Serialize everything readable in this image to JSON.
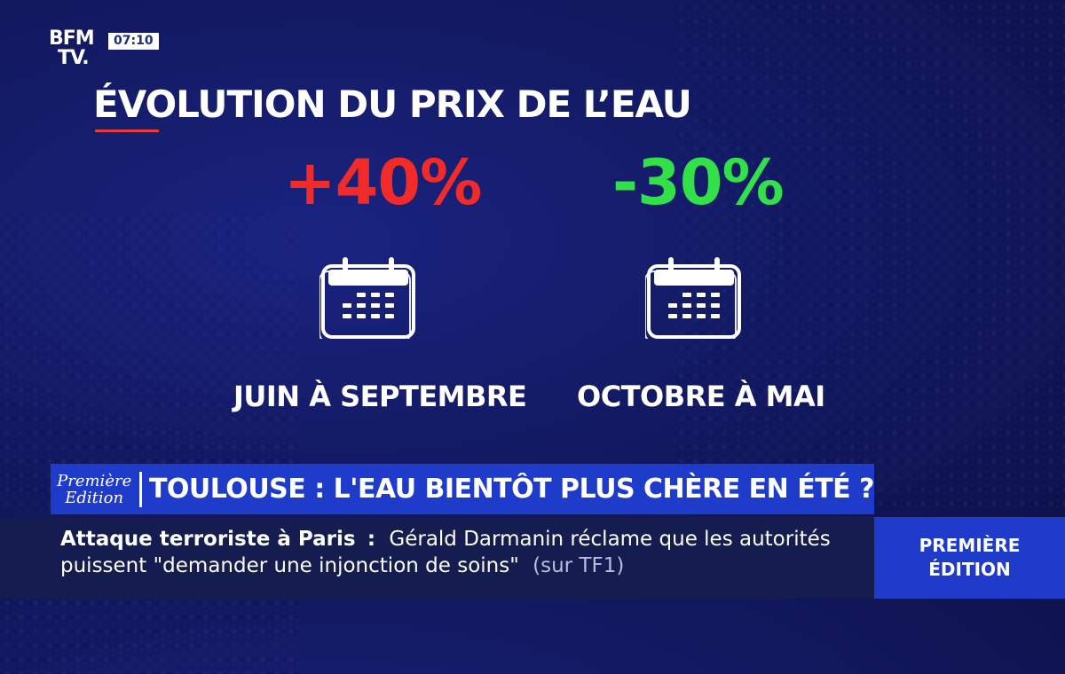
{
  "channel": {
    "logo_line1": "BFM",
    "logo_line2": "TV.",
    "clock": "07:10"
  },
  "infographic": {
    "title": "ÉVOLUTION DU PRIX DE L’EAU",
    "items": [
      {
        "change": "+40%",
        "period": "JUIN À SEPTEMBRE",
        "color": "#f12a2a",
        "icon": "calendar-icon"
      },
      {
        "change": "-30%",
        "period": "OCTOBRE À MAI",
        "color": "#32e04a",
        "icon": "calendar-icon"
      }
    ]
  },
  "banner": {
    "show_logo_line1": "Première",
    "show_logo_line2": "Edition",
    "headline": "TOULOUSE : L'EAU BIENTÔT PLUS CHÈRE EN ÉTÉ ?"
  },
  "ticker": {
    "topic": "Attaque terroriste à Paris",
    "separator": ":",
    "text_line1": "Gérald Darmanin réclame que les autorités",
    "text_line2": "puissent \"demander une injonction de soins\"",
    "source": "(sur TF1)"
  },
  "side_badge": {
    "line1": "PREMIÈRE",
    "line2": "ÉDITION"
  }
}
